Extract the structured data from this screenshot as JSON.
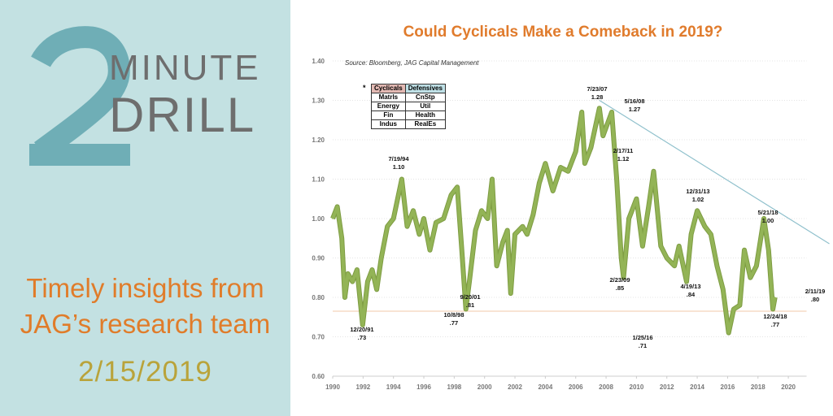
{
  "branding": {
    "number": "2",
    "word1": "MINUTE",
    "word2": "DRILL",
    "tagline_line1": "Timely insights from",
    "tagline_line2": "JAG’s research team",
    "date": "2/15/2019"
  },
  "colors": {
    "panel": "#c3e1e2",
    "accent": "#e07c2a",
    "line": "#93b456",
    "trend": "#8fc0cc",
    "support": "#f2c8a8"
  },
  "legend_table": {
    "marker": "*",
    "headers": [
      "Cyclicals",
      "Defensives"
    ],
    "rows": [
      [
        "Matrls",
        "CnStp"
      ],
      [
        "Energy",
        "Util"
      ],
      [
        "Fin",
        "Health"
      ],
      [
        "Indus",
        "RealEs"
      ]
    ]
  },
  "chart_data": {
    "type": "line",
    "title": "Could Cyclicals Make a Comeback in 2019?",
    "source": "Source: Bloomberg, JAG Capital Management",
    "xlabel": "",
    "ylabel": "",
    "xlim": [
      1990,
      2022.7
    ],
    "ylim": [
      0.6,
      1.4
    ],
    "x_ticks": [
      "1990",
      "1992",
      "1994",
      "1996",
      "1998",
      "2000",
      "2002",
      "2004",
      "2006",
      "2008",
      "2010",
      "2012",
      "2014",
      "2016",
      "2018",
      "2020"
    ],
    "y_ticks": [
      "0.60",
      "0.70",
      "0.80",
      "0.90",
      "1.00",
      "1.10",
      "1.20",
      "1.30",
      "1.40"
    ],
    "grid": true,
    "series": [
      {
        "name": "Cyclicals / Defensives ratio",
        "points": [
          [
            1990.0,
            1.0
          ],
          [
            1990.3,
            1.03
          ],
          [
            1990.6,
            0.95
          ],
          [
            1990.8,
            0.8
          ],
          [
            1991.0,
            0.86
          ],
          [
            1991.3,
            0.84
          ],
          [
            1991.6,
            0.87
          ],
          [
            1991.97,
            0.73
          ],
          [
            1992.3,
            0.84
          ],
          [
            1992.6,
            0.87
          ],
          [
            1992.9,
            0.82
          ],
          [
            1993.2,
            0.9
          ],
          [
            1993.6,
            0.98
          ],
          [
            1994.0,
            1.0
          ],
          [
            1994.55,
            1.1
          ],
          [
            1994.9,
            0.98
          ],
          [
            1995.3,
            1.02
          ],
          [
            1995.7,
            0.96
          ],
          [
            1996.0,
            1.0
          ],
          [
            1996.4,
            0.92
          ],
          [
            1996.8,
            0.99
          ],
          [
            1997.3,
            1.0
          ],
          [
            1997.8,
            1.06
          ],
          [
            1998.2,
            1.08
          ],
          [
            1998.5,
            0.92
          ],
          [
            1998.77,
            0.77
          ],
          [
            1999.0,
            0.84
          ],
          [
            1999.4,
            0.97
          ],
          [
            1999.8,
            1.02
          ],
          [
            2000.2,
            1.0
          ],
          [
            2000.5,
            1.1
          ],
          [
            2000.8,
            0.88
          ],
          [
            2001.2,
            0.94
          ],
          [
            2001.5,
            0.97
          ],
          [
            2001.72,
            0.81
          ],
          [
            2002.0,
            0.96
          ],
          [
            2002.5,
            0.98
          ],
          [
            2002.8,
            0.96
          ],
          [
            2003.2,
            1.01
          ],
          [
            2003.6,
            1.09
          ],
          [
            2004.0,
            1.14
          ],
          [
            2004.5,
            1.07
          ],
          [
            2005.0,
            1.13
          ],
          [
            2005.5,
            1.12
          ],
          [
            2006.0,
            1.17
          ],
          [
            2006.4,
            1.27
          ],
          [
            2006.6,
            1.14
          ],
          [
            2007.0,
            1.18
          ],
          [
            2007.56,
            1.28
          ],
          [
            2007.8,
            1.21
          ],
          [
            2008.37,
            1.27
          ],
          [
            2008.7,
            1.1
          ],
          [
            2009.0,
            0.9
          ],
          [
            2009.15,
            0.85
          ],
          [
            2009.5,
            1.0
          ],
          [
            2010.0,
            1.05
          ],
          [
            2010.4,
            0.93
          ],
          [
            2010.8,
            1.03
          ],
          [
            2011.13,
            1.12
          ],
          [
            2011.6,
            0.93
          ],
          [
            2012.0,
            0.9
          ],
          [
            2012.5,
            0.88
          ],
          [
            2012.8,
            0.93
          ],
          [
            2013.3,
            0.84
          ],
          [
            2013.6,
            0.96
          ],
          [
            2014.0,
            1.02
          ],
          [
            2014.5,
            0.98
          ],
          [
            2014.9,
            0.96
          ],
          [
            2015.3,
            0.88
          ],
          [
            2015.7,
            0.82
          ],
          [
            2016.07,
            0.71
          ],
          [
            2016.4,
            0.77
          ],
          [
            2016.8,
            0.78
          ],
          [
            2017.1,
            0.92
          ],
          [
            2017.5,
            0.85
          ],
          [
            2017.9,
            0.88
          ],
          [
            2018.39,
            1.0
          ],
          [
            2018.7,
            0.92
          ],
          [
            2018.98,
            0.77
          ],
          [
            2019.12,
            0.8
          ]
        ]
      }
    ],
    "trendline": {
      "from": [
        2007.56,
        1.3
      ],
      "to": [
        2022.7,
        0.936
      ]
    },
    "support_line": 0.765,
    "annotations": [
      {
        "date": "12/20/91",
        "value": ".73"
      },
      {
        "date": "7/19/94",
        "value": "1.10"
      },
      {
        "date": "10/8/98",
        "value": ".77"
      },
      {
        "date": "9/20/01",
        "value": ".81"
      },
      {
        "date": "7/23/07",
        "value": "1.28"
      },
      {
        "date": "5/16/08",
        "value": "1.27"
      },
      {
        "date": "2/23/09",
        "value": ".85"
      },
      {
        "date": "2/17/11",
        "value": "1.12"
      },
      {
        "date": "4/19/13",
        "value": ".84"
      },
      {
        "date": "12/31/13",
        "value": "1.02"
      },
      {
        "date": "1/25/16",
        "value": ".71"
      },
      {
        "date": "5/21/18",
        "value": "1.00"
      },
      {
        "date": "12/24/18",
        "value": ".77"
      },
      {
        "date": "2/11/19",
        "value": ".80"
      }
    ]
  }
}
